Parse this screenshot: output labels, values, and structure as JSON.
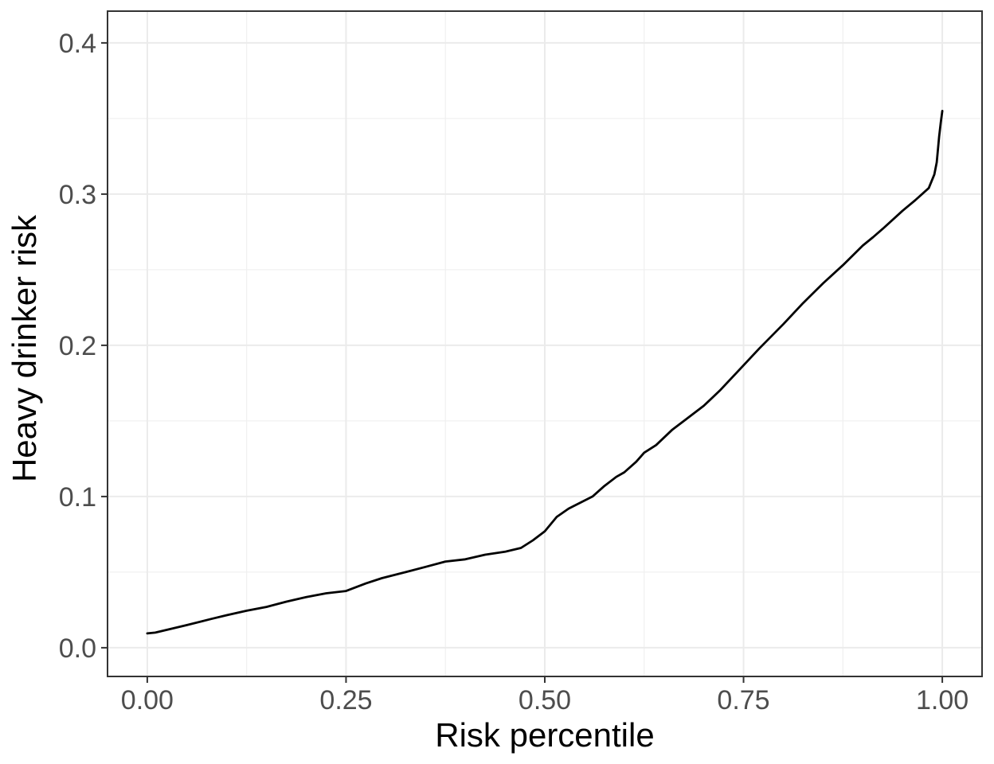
{
  "figure": {
    "background": "#ffffff"
  },
  "chart_data": {
    "type": "line",
    "title": "",
    "xlabel": "Risk percentile",
    "ylabel": "Heavy drinker risk",
    "xlim": [
      -0.05,
      1.05
    ],
    "ylim": [
      -0.019,
      0.421
    ],
    "x_ticks": [
      0,
      0.25,
      0.5,
      0.75,
      1.0
    ],
    "x_tick_labels": [
      "0.00",
      "0.25",
      "0.50",
      "0.75",
      "1.00"
    ],
    "y_ticks": [
      0,
      0.1,
      0.2,
      0.3,
      0.4
    ],
    "y_tick_labels": [
      "0.0",
      "0.1",
      "0.2",
      "0.3",
      "0.4"
    ],
    "x_minor_ticks": [
      0.125,
      0.375,
      0.625,
      0.875
    ],
    "y_minor_ticks": [
      0.05,
      0.15,
      0.25,
      0.35
    ],
    "grid": "on",
    "legend": "none",
    "series": [
      {
        "name": "heavy-drinker-risk-quantile-curve",
        "color": "#000000",
        "x": [
          0.0,
          0.01,
          0.03,
          0.05,
          0.08,
          0.1,
          0.125,
          0.15,
          0.175,
          0.2,
          0.225,
          0.25,
          0.275,
          0.295,
          0.325,
          0.35,
          0.375,
          0.4,
          0.425,
          0.45,
          0.47,
          0.485,
          0.5,
          0.515,
          0.53,
          0.545,
          0.56,
          0.575,
          0.59,
          0.6,
          0.615,
          0.625,
          0.64,
          0.66,
          0.675,
          0.7,
          0.72,
          0.745,
          0.77,
          0.8,
          0.825,
          0.85,
          0.875,
          0.9,
          0.913,
          0.925,
          0.95,
          0.966,
          0.983,
          0.99,
          0.993,
          0.996,
          0.998,
          1.0
        ],
        "y": [
          0.0095,
          0.01,
          0.0125,
          0.015,
          0.019,
          0.0215,
          0.0245,
          0.027,
          0.0305,
          0.0335,
          0.036,
          0.0375,
          0.0425,
          0.046,
          0.05,
          0.0535,
          0.057,
          0.0585,
          0.0615,
          0.0635,
          0.066,
          0.071,
          0.077,
          0.0865,
          0.092,
          0.096,
          0.1,
          0.107,
          0.113,
          0.116,
          0.123,
          0.129,
          0.134,
          0.144,
          0.15,
          0.16,
          0.17,
          0.184,
          0.198,
          0.214,
          0.228,
          0.241,
          0.253,
          0.266,
          0.2715,
          0.277,
          0.289,
          0.296,
          0.304,
          0.313,
          0.321,
          0.338,
          0.347,
          0.355
        ]
      }
    ],
    "style": {
      "panel_background": "#ffffff",
      "panel_border": "#333333",
      "grid_major": "#ebebeb",
      "grid_minor": "#f0f0f0",
      "tick_mark_color": "#333333",
      "tick_label_color": "#4d4d4d",
      "axis_title_color": "#000000",
      "line_width": 2.8
    }
  }
}
